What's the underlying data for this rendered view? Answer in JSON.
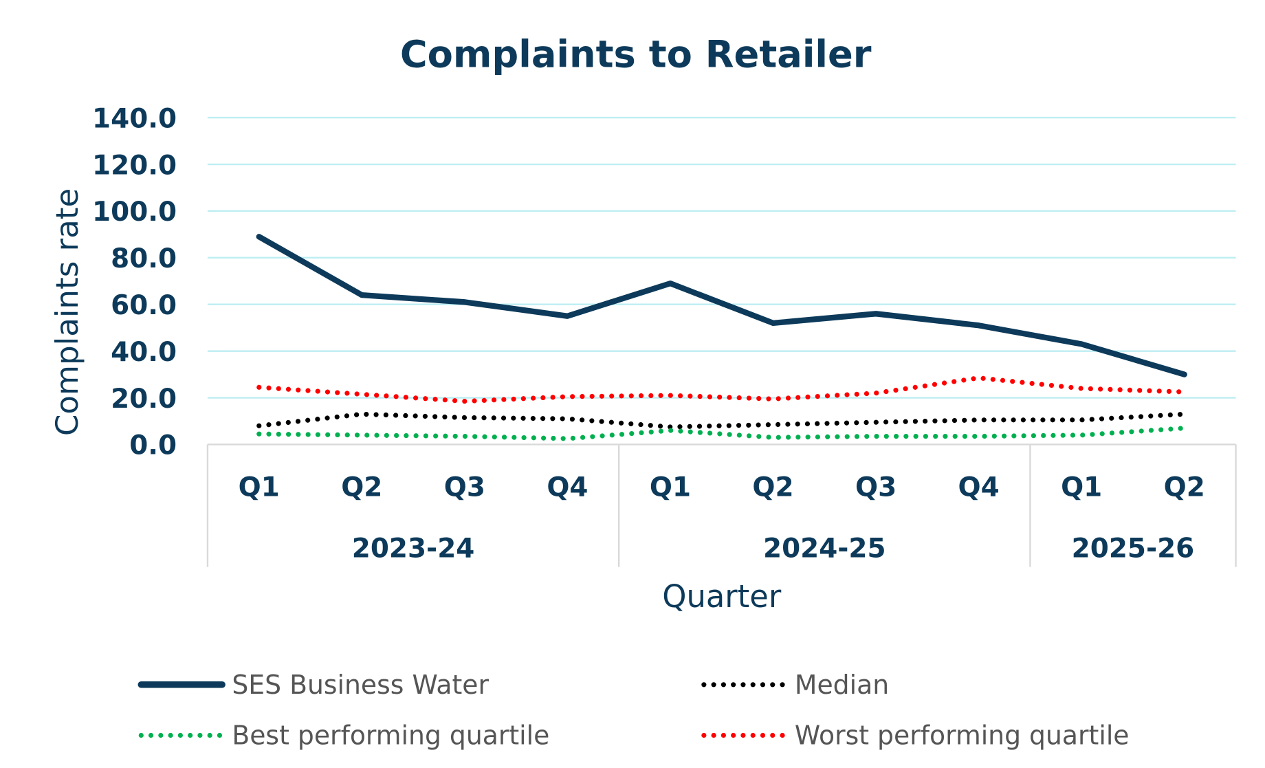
{
  "chart_data": {
    "type": "line",
    "title": "Complaints to Retailer",
    "xlabel": "Quarter",
    "ylabel": "Complaints rate",
    "ylim": [
      0,
      140
    ],
    "yticks": [
      "0.0",
      "20.0",
      "40.0",
      "60.0",
      "80.0",
      "100.0",
      "120.0",
      "140.0"
    ],
    "grid": true,
    "legend_position": "bottom",
    "categories": [
      "Q1",
      "Q2",
      "Q3",
      "Q4",
      "Q1",
      "Q2",
      "Q3",
      "Q4",
      "Q1",
      "Q2"
    ],
    "groups": [
      {
        "label": "2023-24",
        "count": 4
      },
      {
        "label": "2024-25",
        "count": 4
      },
      {
        "label": "2025-26",
        "count": 2
      }
    ],
    "series": [
      {
        "name": "SES Business Water",
        "color": "#0d3a5a",
        "style": "solid",
        "values": [
          89,
          64,
          61,
          55,
          69,
          52,
          56,
          51,
          43,
          30
        ]
      },
      {
        "name": "Median",
        "color": "#000000",
        "style": "dotted",
        "values": [
          8,
          13,
          11.5,
          11,
          7.5,
          8.5,
          9.5,
          10.5,
          10.5,
          13
        ]
      },
      {
        "name": "Best performing quartile",
        "color": "#00b050",
        "style": "dotted",
        "values": [
          4.5,
          4,
          3.5,
          2.5,
          6,
          3,
          3.5,
          3.5,
          4,
          7
        ]
      },
      {
        "name": "Worst performing quartile",
        "color": "#ff0000",
        "style": "dotted",
        "values": [
          24.5,
          21.5,
          18.5,
          20.5,
          21,
          19.5,
          22,
          28.5,
          24,
          22.5
        ]
      }
    ],
    "colors": {
      "gridline": "#bdeef2",
      "axis_text": "#0d3a5a",
      "frame": "#d9d9d9"
    }
  }
}
